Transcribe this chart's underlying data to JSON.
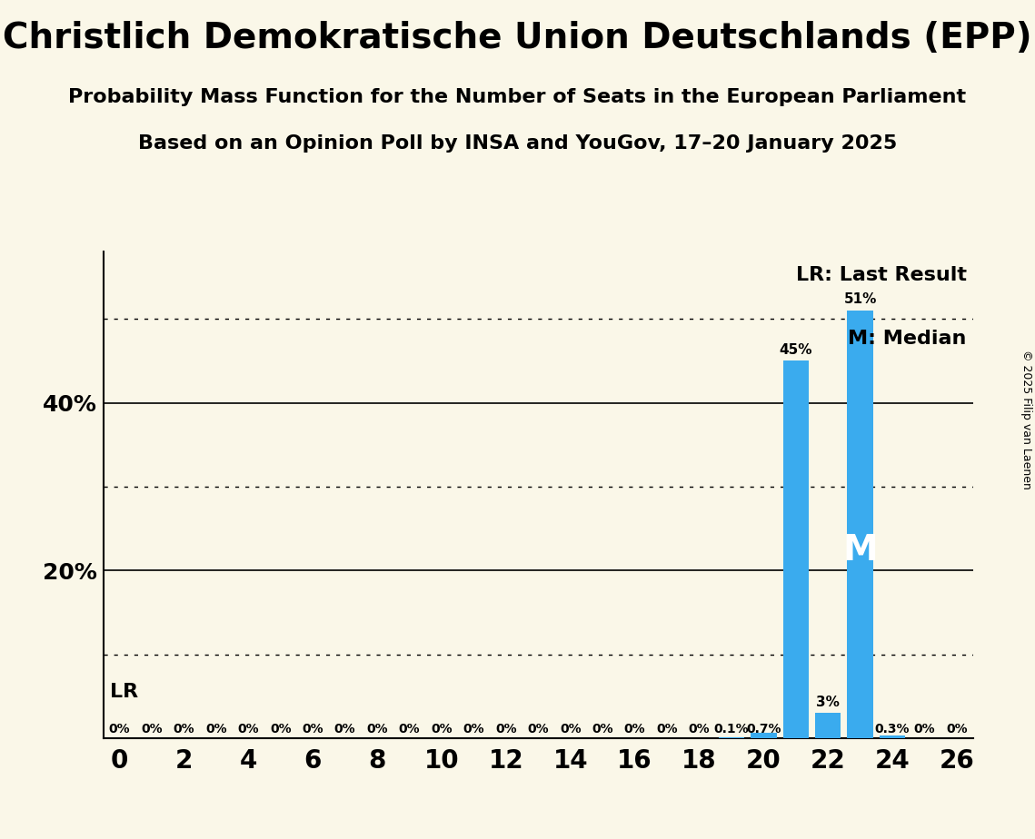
{
  "title": "Christlich Demokratische Union Deutschlands (EPP)",
  "subtitle1": "Probability Mass Function for the Number of Seats in the European Parliament",
  "subtitle2": "Based on an Opinion Poll by INSA and YouGov, 17–20 January 2025",
  "copyright": "© 2025 Filip van Laenen",
  "background_color": "#faf7e8",
  "bar_color": "#3aabee",
  "last_result_seat": 23,
  "median_seat": 23,
  "seats": [
    0,
    1,
    2,
    3,
    4,
    5,
    6,
    7,
    8,
    9,
    10,
    11,
    12,
    13,
    14,
    15,
    16,
    17,
    18,
    19,
    20,
    21,
    22,
    23,
    24,
    25,
    26
  ],
  "probabilities": [
    0.0,
    0.0,
    0.0,
    0.0,
    0.0,
    0.0,
    0.0,
    0.0,
    0.0,
    0.0,
    0.0,
    0.0,
    0.0,
    0.0,
    0.0,
    0.0,
    0.0,
    0.0,
    0.0,
    0.1,
    0.7,
    45.0,
    3.0,
    51.0,
    0.3,
    0.0,
    0.0
  ],
  "bar_labels": [
    "0%",
    "0%",
    "0%",
    "0%",
    "0%",
    "0%",
    "0%",
    "0%",
    "0%",
    "0%",
    "0%",
    "0%",
    "0%",
    "0%",
    "0%",
    "0%",
    "0%",
    "0%",
    "0%",
    "0.1%",
    "0.7%",
    "45%",
    "3%",
    "51%",
    "0.3%",
    "0%",
    "0%"
  ],
  "solid_gridlines": [
    20.0,
    40.0
  ],
  "dotted_gridlines": [
    10.0,
    30.0,
    50.0
  ],
  "ylim": [
    0,
    58
  ],
  "xlim": [
    -0.5,
    26.5
  ],
  "lr_label": "LR: Last Result",
  "m_label": "M: Median",
  "lr_text": "LR",
  "m_text": "M",
  "title_fontsize": 28,
  "subtitle_fontsize": 16,
  "bar_label_fontsize": 11,
  "legend_fontsize": 16,
  "ytick_fontsize": 18,
  "xtick_fontsize": 20,
  "copyright_fontsize": 9,
  "m_fontsize": 28
}
